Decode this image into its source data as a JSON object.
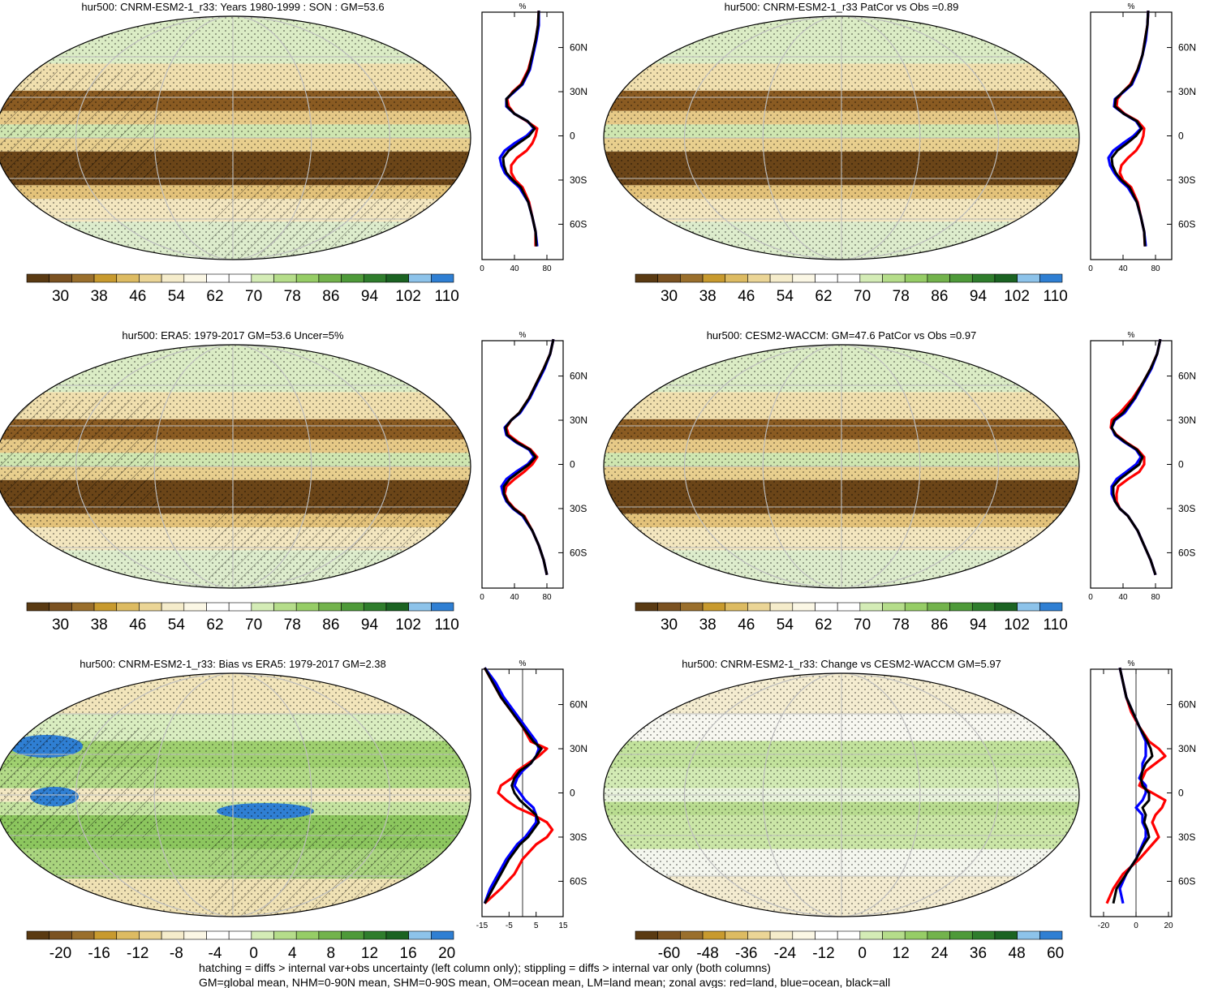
{
  "footnote": [
    "hatching = diffs > internal var+obs uncertainty (left column only); stippling = diffs > internal var only (both columns)",
    "GM=global mean, NHM=0-90N mean, SHM=0-90S mean, OM=ocean mean, LM=land mean; zonal avgs: red=land, blue=ocean, black=all"
  ],
  "colors": {
    "land": "#ff0000",
    "ocean": "#0000ff",
    "all": "#000000"
  },
  "chart_data": [
    {
      "type": "heatmap",
      "title": "hur500: CNRM-ESM2-1_r33: Years 1980-1999 : SON : GM=53.6",
      "colorbar_labels": [
        "30",
        "38",
        "46",
        "54",
        "62",
        "70",
        "78",
        "86",
        "94",
        "102",
        "110"
      ],
      "palette": "humidity",
      "profile": {
        "type": "line",
        "xlabel": "%",
        "xlim": [
          0,
          100
        ],
        "x_ticks": [
          "0",
          "40",
          "80"
        ],
        "lat_ticks": [
          "60N",
          "30N",
          "0",
          "30S",
          "60S"
        ],
        "lat": [
          85,
          75,
          65,
          55,
          45,
          35,
          30,
          25,
          20,
          15,
          10,
          5,
          0,
          -5,
          -10,
          -15,
          -20,
          -25,
          -30,
          -35,
          -45,
          -55,
          -65,
          -75
        ],
        "series": [
          {
            "key": "land",
            "values": [
              70,
              69,
              66,
              62,
              57,
              48,
              38,
              31,
              33,
              40,
              55,
              68,
              66,
              62,
              55,
              43,
              36,
              36,
              41,
              50,
              58,
              62,
              66,
              66
            ]
          },
          {
            "key": "ocean",
            "values": [
              70,
              70,
              67,
              63,
              59,
              50,
              40,
              30,
              30,
              40,
              56,
              64,
              55,
              40,
              28,
              22,
              24,
              28,
              36,
              46,
              57,
              62,
              66,
              68
            ]
          },
          {
            "key": "all",
            "values": [
              70,
              69,
              66,
              62,
              58,
              49,
              39,
              30,
              31,
              40,
              56,
              65,
              58,
              45,
              33,
              26,
              27,
              30,
              38,
              48,
              57,
              62,
              66,
              67
            ]
          }
        ]
      }
    },
    {
      "type": "heatmap",
      "title": "hur500: CNRM-ESM2-1_r33 PatCor vs Obs =0.89",
      "colorbar_labels": [
        "30",
        "38",
        "46",
        "54",
        "62",
        "70",
        "78",
        "86",
        "94",
        "102",
        "110"
      ],
      "palette": "humidity",
      "profile": {
        "type": "line",
        "xlabel": "%",
        "xlim": [
          0,
          100
        ],
        "x_ticks": [
          "0",
          "40",
          "80"
        ],
        "lat_ticks": [
          "60N",
          "30N",
          "0",
          "30S",
          "60S"
        ],
        "lat": [
          85,
          75,
          65,
          55,
          45,
          35,
          30,
          25,
          20,
          15,
          10,
          5,
          0,
          -5,
          -10,
          -15,
          -20,
          -25,
          -30,
          -35,
          -45,
          -55,
          -65,
          -75
        ],
        "series": [
          {
            "key": "land",
            "values": [
              71,
              70,
              67,
              64,
              58,
              49,
              40,
              33,
              32,
              42,
              58,
              66,
              65,
              62,
              56,
              46,
              38,
              36,
              40,
              50,
              58,
              62,
              66,
              67
            ]
          },
          {
            "key": "ocean",
            "values": [
              71,
              70,
              68,
              64,
              59,
              51,
              41,
              30,
              29,
              41,
              56,
              62,
              53,
              40,
              28,
              22,
              24,
              29,
              36,
              46,
              57,
              62,
              66,
              68
            ]
          },
          {
            "key": "all",
            "values": [
              71,
              70,
              67,
              64,
              58,
              50,
              40,
              31,
              30,
              41,
              57,
              63,
              56,
              45,
              33,
              26,
              27,
              31,
              38,
              48,
              57,
              62,
              66,
              67
            ]
          }
        ]
      }
    },
    {
      "type": "heatmap",
      "title": "hur500: ERA5: 1979-2017 GM=53.6 Uncer=5%",
      "colorbar_labels": [
        "30",
        "38",
        "46",
        "54",
        "62",
        "70",
        "78",
        "86",
        "94",
        "102",
        "110"
      ],
      "palette": "humidity",
      "profile": {
        "type": "line",
        "xlabel": "%",
        "xlim": [
          0,
          100
        ],
        "x_ticks": [
          "0",
          "40",
          "80"
        ],
        "lat_ticks": [
          "60N",
          "30N",
          "0",
          "30S",
          "60S"
        ],
        "lat": [
          85,
          75,
          65,
          55,
          45,
          35,
          30,
          25,
          20,
          15,
          10,
          5,
          0,
          -5,
          -10,
          -15,
          -20,
          -25,
          -30,
          -35,
          -45,
          -55,
          -65,
          -75
        ],
        "series": [
          {
            "key": "land",
            "values": [
              88,
              84,
              76,
              67,
              58,
              46,
              36,
              30,
              33,
              45,
              60,
              68,
              62,
              52,
              40,
              30,
              28,
              32,
              40,
              52,
              62,
              70,
              76,
              80
            ]
          },
          {
            "key": "ocean",
            "values": [
              88,
              84,
              77,
              68,
              59,
              47,
              36,
              28,
              30,
              42,
              58,
              64,
              56,
              42,
              30,
              24,
              26,
              30,
              38,
              50,
              62,
              70,
              76,
              80
            ]
          },
          {
            "key": "all",
            "values": [
              88,
              84,
              76,
              67,
              58,
              46,
              36,
              29,
              31,
              43,
              59,
              66,
              58,
              46,
              34,
              27,
              27,
              31,
              39,
              51,
              62,
              70,
              76,
              80
            ]
          }
        ]
      }
    },
    {
      "type": "heatmap",
      "title": "hur500: CESM2-WACCM: GM=47.6 PatCor vs Obs =0.97",
      "colorbar_labels": [
        "30",
        "38",
        "46",
        "54",
        "62",
        "70",
        "78",
        "86",
        "94",
        "102",
        "110"
      ],
      "palette": "humidity",
      "profile": {
        "type": "line",
        "xlabel": "%",
        "xlim": [
          0,
          100
        ],
        "x_ticks": [
          "0",
          "40",
          "80"
        ],
        "lat_ticks": [
          "60N",
          "30N",
          "0",
          "30S",
          "60S"
        ],
        "lat": [
          85,
          75,
          65,
          55,
          45,
          35,
          30,
          25,
          20,
          15,
          10,
          5,
          0,
          -5,
          -10,
          -15,
          -20,
          -25,
          -30,
          -35,
          -45,
          -55,
          -65,
          -75
        ],
        "series": [
          {
            "key": "land",
            "values": [
              86,
              82,
              74,
              64,
              52,
              36,
              26,
              25,
              32,
              44,
              58,
              66,
              66,
              60,
              46,
              34,
              32,
              32,
              36,
              46,
              58,
              66,
              74,
              80
            ]
          },
          {
            "key": "ocean",
            "values": [
              86,
              82,
              75,
              65,
              55,
              42,
              30,
              26,
              30,
              42,
              56,
              62,
              56,
              44,
              32,
              26,
              26,
              30,
              36,
              46,
              58,
              66,
              74,
              80
            ]
          },
          {
            "key": "all",
            "values": [
              86,
              82,
              74,
              64,
              54,
              40,
              29,
              26,
              31,
              43,
              57,
              64,
              60,
              48,
              36,
              28,
              28,
              30,
              36,
              46,
              58,
              66,
              74,
              80
            ]
          }
        ]
      }
    },
    {
      "type": "heatmap",
      "title": "hur500: CNRM-ESM2-1_r33: Bias vs ERA5: 1979-2017  GM=2.38",
      "colorbar_labels": [
        "-20",
        "-16",
        "-12",
        "-8",
        "-4",
        "0",
        "4",
        "8",
        "12",
        "16",
        "20"
      ],
      "palette": "diff",
      "profile": {
        "type": "line",
        "xlabel": "%",
        "xlim": [
          -15,
          15
        ],
        "x_ticks": [
          "-15",
          "-5",
          "5",
          "15"
        ],
        "zero_line": 0,
        "lat_ticks": [
          "60N",
          "30N",
          "0",
          "30S",
          "60S"
        ],
        "lat": [
          85,
          75,
          65,
          55,
          45,
          35,
          30,
          25,
          20,
          15,
          10,
          5,
          0,
          -5,
          -10,
          -15,
          -20,
          -25,
          -30,
          -35,
          -45,
          -55,
          -65,
          -75
        ],
        "series": [
          {
            "key": "land",
            "values": [
              -14,
              -11,
              -8,
              -4,
              0,
              3,
              9,
              6,
              2,
              -2,
              -4,
              -8,
              -9,
              -6,
              -2,
              4,
              9,
              11,
              9,
              5,
              0,
              -3,
              -8,
              -14
            ]
          },
          {
            "key": "ocean",
            "values": [
              -14,
              -10,
              -7,
              -3,
              1,
              5,
              6,
              5,
              3,
              0,
              -2,
              -3,
              -1,
              1,
              4,
              5,
              5,
              3,
              1,
              -2,
              -6,
              -9,
              -12,
              -14
            ]
          },
          {
            "key": "all",
            "values": [
              -14,
              -11,
              -8,
              -4,
              0,
              4,
              7,
              5,
              3,
              -1,
              -3,
              -4,
              -3,
              -1,
              2,
              5,
              6,
              4,
              2,
              -1,
              -5,
              -8,
              -11,
              -14
            ]
          }
        ]
      }
    },
    {
      "type": "heatmap",
      "title": "hur500: CNRM-ESM2-1_r33: Change vs CESM2-WACCM GM=5.97",
      "colorbar_labels": [
        "-60",
        "-48",
        "-36",
        "-24",
        "-12",
        "0",
        "12",
        "24",
        "36",
        "48",
        "60"
      ],
      "palette": "diff",
      "profile": {
        "type": "line",
        "xlabel": "%",
        "xlim": [
          -28,
          22
        ],
        "x_ticks": [
          "-20",
          "0",
          "20"
        ],
        "zero_line": 0,
        "lat_ticks": [
          "60N",
          "30N",
          "0",
          "30S",
          "60S"
        ],
        "lat": [
          85,
          75,
          65,
          55,
          45,
          35,
          30,
          25,
          20,
          15,
          10,
          5,
          0,
          -5,
          -10,
          -15,
          -20,
          -25,
          -30,
          -35,
          -45,
          -55,
          -65,
          -75
        ],
        "series": [
          {
            "key": "land",
            "values": [
              -10,
              -8,
              -6,
              -3,
              2,
              8,
              14,
              18,
              12,
              6,
              4,
              2,
              10,
              18,
              16,
              12,
              10,
              12,
              14,
              10,
              2,
              -8,
              -14,
              -18
            ]
          },
          {
            "key": "ocean",
            "values": [
              -10,
              -8,
              -6,
              -2,
              2,
              6,
              6,
              6,
              4,
              4,
              2,
              6,
              6,
              4,
              0,
              4,
              4,
              6,
              6,
              4,
              0,
              -6,
              -10,
              -8
            ]
          },
          {
            "key": "all",
            "values": [
              -10,
              -8,
              -6,
              -2,
              2,
              7,
              9,
              10,
              6,
              4,
              3,
              4,
              8,
              8,
              4,
              6,
              5,
              7,
              8,
              5,
              0,
              -6,
              -12,
              -14
            ]
          }
        ]
      }
    }
  ]
}
